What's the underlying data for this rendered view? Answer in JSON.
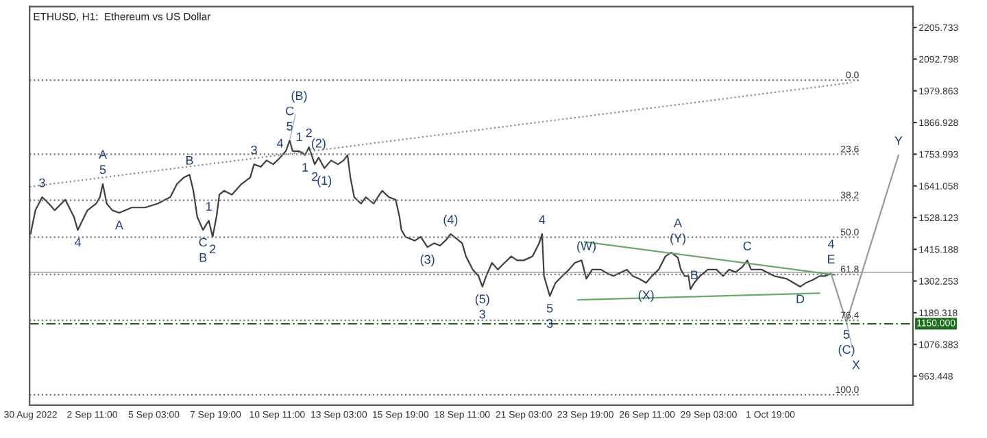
{
  "chart_data": {
    "type": "line",
    "title": "ETHUSD, H1:  Ethereum vs US Dollar",
    "xlim": [
      "2022-08-30T18:00",
      "2022-10-07T23:00"
    ],
    "ylim": [
      860,
      2280
    ],
    "xticks": [
      {
        "value": "2022-08-30T19:00",
        "label": "30 Aug 2022"
      },
      {
        "value": "2022-09-02T11:00",
        "label": "2 Sep 11:00"
      },
      {
        "value": "2022-09-05T03:00",
        "label": "5 Sep 03:00"
      },
      {
        "value": "2022-09-07T19:00",
        "label": "7 Sep 19:00"
      },
      {
        "value": "2022-09-10T11:00",
        "label": "10 Sep 11:00"
      },
      {
        "value": "2022-09-13T03:00",
        "label": "13 Sep 03:00"
      },
      {
        "value": "2022-09-15T19:00",
        "label": "15 Sep 19:00"
      },
      {
        "value": "2022-09-18T11:00",
        "label": "18 Sep 11:00"
      },
      {
        "value": "2022-09-21T03:00",
        "label": "21 Sep 03:00"
      },
      {
        "value": "2022-09-23T19:00",
        "label": "23 Sep 19:00"
      },
      {
        "value": "2022-09-26T11:00",
        "label": "26 Sep 11:00"
      },
      {
        "value": "2022-09-29T03:00",
        "label": "29 Sep 03:00"
      },
      {
        "value": "2022-10-01T19:00",
        "label": "1 Oct 19:00"
      }
    ],
    "yticks": [
      963.448,
      1076.383,
      1189.318,
      1302.253,
      1415.188,
      1528.123,
      1641.058,
      1753.993,
      1866.928,
      1979.863,
      2092.798,
      2205.733
    ],
    "grid": false,
    "legend": false,
    "series": [
      {
        "color": "#404040",
        "line_style": "solid",
        "marker": "none",
        "x": [
          "2022-08-30T19:00",
          "2022-08-31T00:00",
          "2022-08-31T07:00",
          "2022-08-31T14:00",
          "2022-08-31T20:00",
          "2022-09-01T07:00",
          "2022-09-01T16:00",
          "2022-09-01T20:00",
          "2022-09-02T06:00",
          "2022-09-02T15:00",
          "2022-09-02T19:00",
          "2022-09-02T22:00",
          "2022-09-03T02:00",
          "2022-09-03T08:00",
          "2022-09-03T15:00",
          "2022-09-04T04:00",
          "2022-09-04T18:00",
          "2022-09-05T07:00",
          "2022-09-05T20:00",
          "2022-09-06T03:00",
          "2022-09-06T10:00",
          "2022-09-06T16:00",
          "2022-09-06T20:00",
          "2022-09-07T00:00",
          "2022-09-07T06:00",
          "2022-09-07T10:00",
          "2022-09-07T12:00",
          "2022-09-07T16:00",
          "2022-09-07T20:00",
          "2022-09-07T23:00",
          "2022-09-08T04:00",
          "2022-09-08T12:00",
          "2022-09-08T22:00",
          "2022-09-09T07:00",
          "2022-09-09T11:00",
          "2022-09-09T18:00",
          "2022-09-10T00:00",
          "2022-09-10T07:00",
          "2022-09-10T14:00",
          "2022-09-10T20:00",
          "2022-09-11T00:00",
          "2022-09-11T03:00",
          "2022-09-11T10:00",
          "2022-09-11T16:00",
          "2022-09-11T20:00",
          "2022-09-12T02:00",
          "2022-09-12T06:00",
          "2022-09-12T12:00",
          "2022-09-12T19:00",
          "2022-09-13T02:00",
          "2022-09-13T08:00",
          "2022-09-13T12:00",
          "2022-09-13T15:00",
          "2022-09-13T19:00",
          "2022-09-14T02:00",
          "2022-09-14T07:00",
          "2022-09-14T15:00",
          "2022-09-15T00:00",
          "2022-09-15T07:00",
          "2022-09-15T14:00",
          "2022-09-15T18:00",
          "2022-09-15T20:00",
          "2022-09-16T00:00",
          "2022-09-16T10:00",
          "2022-09-16T16:00",
          "2022-09-16T23:00",
          "2022-09-17T06:00",
          "2022-09-17T12:00",
          "2022-09-17T19:00",
          "2022-09-17T23:00",
          "2022-09-18T06:00",
          "2022-09-18T11:00",
          "2022-09-18T15:00",
          "2022-09-18T22:00",
          "2022-09-19T04:00",
          "2022-09-19T08:00",
          "2022-09-19T12:00",
          "2022-09-19T18:00",
          "2022-09-20T00:00",
          "2022-09-20T07:00",
          "2022-09-20T14:00",
          "2022-09-20T20:00",
          "2022-09-21T03:00",
          "2022-09-21T12:00",
          "2022-09-21T19:00",
          "2022-09-21T22:00",
          "2022-09-22T00:00",
          "2022-09-22T06:00",
          "2022-09-22T12:00",
          "2022-09-22T19:00",
          "2022-09-23T02:00",
          "2022-09-23T08:00",
          "2022-09-23T15:00",
          "2022-09-23T20:00",
          "2022-09-24T02:00",
          "2022-09-24T11:00",
          "2022-09-24T18:00",
          "2022-09-25T00:00",
          "2022-09-25T14:00",
          "2022-09-25T20:00",
          "2022-09-26T03:00",
          "2022-09-26T10:00",
          "2022-09-26T16:00",
          "2022-09-26T23:00",
          "2022-09-27T06:00",
          "2022-09-27T12:00",
          "2022-09-27T19:00",
          "2022-09-27T22:00",
          "2022-09-28T02:00",
          "2022-09-28T06:00",
          "2022-09-28T08:00",
          "2022-09-28T12:00",
          "2022-09-28T18:00",
          "2022-09-29T02:00",
          "2022-09-29T11:00",
          "2022-09-29T18:00",
          "2022-09-30T00:00",
          "2022-09-30T07:00",
          "2022-09-30T14:00",
          "2022-09-30T19:00",
          "2022-09-30T23:00",
          "2022-10-01T10:00",
          "2022-10-01T23:00",
          "2022-10-02T12:00",
          "2022-10-02T19:00",
          "2022-10-03T02:00",
          "2022-10-03T08:00",
          "2022-10-03T15:00",
          "2022-10-03T22:00",
          "2022-10-04T04:00",
          "2022-10-04T10:00"
        ],
        "values": [
          1470,
          1554,
          1601,
          1578,
          1554,
          1592,
          1531,
          1484,
          1554,
          1578,
          1601,
          1648,
          1578,
          1554,
          1545,
          1564,
          1564,
          1578,
          1601,
          1648,
          1671,
          1681,
          1624,
          1531,
          1484,
          1507,
          1517,
          1460,
          1531,
          1610,
          1624,
          1610,
          1648,
          1671,
          1718,
          1709,
          1732,
          1718,
          1742,
          1765,
          1803,
          1765,
          1765,
          1751,
          1779,
          1718,
          1742,
          1704,
          1732,
          1718,
          1732,
          1751,
          1671,
          1601,
          1578,
          1601,
          1578,
          1624,
          1601,
          1592,
          1531,
          1484,
          1460,
          1446,
          1460,
          1423,
          1437,
          1428,
          1451,
          1470,
          1451,
          1437,
          1390,
          1343,
          1320,
          1282,
          1320,
          1367,
          1343,
          1367,
          1390,
          1376,
          1376,
          1390,
          1437,
          1470,
          1320,
          1249,
          1296,
          1320,
          1343,
          1367,
          1376,
          1310,
          1343,
          1343,
          1329,
          1320,
          1343,
          1320,
          1310,
          1296,
          1320,
          1343,
          1390,
          1404,
          1385,
          1343,
          1320,
          1320,
          1273,
          1296,
          1320,
          1343,
          1343,
          1320,
          1343,
          1334,
          1353,
          1376,
          1343,
          1343,
          1320,
          1310,
          1296,
          1282,
          1296,
          1306,
          1320,
          1320,
          1329
        ]
      },
      {
        "color": "#9a9a9a",
        "line_style": "solid",
        "marker": "none",
        "x": [
          "2022-10-04T10:00",
          "2022-10-05T02:00",
          "2022-10-07T08:00"
        ],
        "values": [
          1329,
          1156,
          1751
        ]
      },
      {
        "color": "#8c8c8c",
        "line_style": "dotted",
        "marker": "none",
        "x": [
          "2022-08-30T18:00",
          "2022-10-05T07:00"
        ],
        "values": [
          1638,
          2009
        ]
      },
      {
        "color": "#6aaa6a",
        "line_style": "solid",
        "marker": "none",
        "x": [
          "2022-09-23T18:00",
          "2022-10-04T14:00"
        ],
        "values": [
          1442,
          1324
        ]
      },
      {
        "color": "#6aaa6a",
        "line_style": "solid",
        "marker": "none",
        "x": [
          "2022-09-23T11:00",
          "2022-10-03T22:00"
        ],
        "values": [
          1235,
          1259
        ]
      },
      {
        "name": "0.0",
        "color": "#777777",
        "line_style": "dotted",
        "marker": "none",
        "x": [
          "2022-08-30T18:00",
          "2022-10-05T15:00"
        ],
        "values": [
          2018,
          2018
        ]
      },
      {
        "name": "23.6",
        "color": "#777777",
        "line_style": "dotted",
        "marker": "none",
        "x": [
          "2022-08-30T18:00",
          "2022-10-05T15:00"
        ],
        "values": [
          1754,
          1754
        ]
      },
      {
        "name": "38.2",
        "color": "#777777",
        "line_style": "dotted",
        "marker": "none",
        "x": [
          "2022-08-30T18:00",
          "2022-10-05T15:00"
        ],
        "values": [
          1590,
          1590
        ]
      },
      {
        "name": "50.0",
        "color": "#777777",
        "line_style": "dotted",
        "marker": "none",
        "x": [
          "2022-08-30T18:00",
          "2022-10-05T15:00"
        ],
        "values": [
          1458,
          1458
        ]
      },
      {
        "name": "61.8",
        "color": "#777777",
        "line_style": "dotted",
        "marker": "none",
        "x": [
          "2022-08-30T18:00",
          "2022-10-05T15:00"
        ],
        "values": [
          1326,
          1326
        ]
      },
      {
        "name": "76.4",
        "color": "#777777",
        "line_style": "dotted",
        "marker": "none",
        "x": [
          "2022-08-30T18:00",
          "2022-10-05T15:00"
        ],
        "values": [
          1162,
          1162
        ]
      },
      {
        "name": "100.0",
        "color": "#777777",
        "line_style": "dotted",
        "marker": "none",
        "x": [
          "2022-08-30T18:00",
          "2022-10-05T15:00"
        ],
        "values": [
          897,
          897
        ]
      }
    ],
    "annotations": [
      {
        "text": "3",
        "x": "2022-08-31T07:00",
        "y": 1601
      },
      {
        "text": "4",
        "x": "2022-09-01T20:00",
        "y": 1484
      },
      {
        "text": "5",
        "x": "2022-09-02T22:00",
        "y": 1648
      },
      {
        "text": "A",
        "x": "2022-09-02T22:00",
        "y": 1648
      },
      {
        "text": "A",
        "x": "2022-09-03T15:00",
        "y": 1545
      },
      {
        "text": "B",
        "x": "2022-09-06T16:00",
        "y": 1681
      },
      {
        "text": "C",
        "x": "2022-09-07T06:00",
        "y": 1484
      },
      {
        "text": "B",
        "x": "2022-09-07T06:00",
        "y": 1484
      },
      {
        "text": "1",
        "x": "2022-09-07T12:00",
        "y": 1517
      },
      {
        "text": "2",
        "x": "2022-09-07T16:00",
        "y": 1460
      },
      {
        "text": "3",
        "x": "2022-09-09T11:00",
        "y": 1718
      },
      {
        "text": "4",
        "x": "2022-09-10T14:00",
        "y": 1742
      },
      {
        "text": "5",
        "x": "2022-09-11T00:00",
        "y": 1803
      },
      {
        "text": "C",
        "x": "2022-09-11T00:00",
        "y": 1803
      },
      {
        "text": "(B)",
        "x": "2022-09-11T00:00",
        "y": 1803
      },
      {
        "text": "1",
        "x": "2022-09-11T10:00",
        "y": 1765
      },
      {
        "text": "2",
        "x": "2022-09-11T20:00",
        "y": 1779
      },
      {
        "text": "2",
        "x": "2022-09-12T02:00",
        "y": 1718
      },
      {
        "text": "(2)",
        "x": "2022-09-12T06:00",
        "y": 1742
      },
      {
        "text": "1",
        "x": "2022-09-11T16:00",
        "y": 1751
      },
      {
        "text": "(1)",
        "x": "2022-09-12T12:00",
        "y": 1704
      },
      {
        "text": "(3)",
        "x": "2022-09-16T23:00",
        "y": 1423
      },
      {
        "text": "(4)",
        "x": "2022-09-17T23:00",
        "y": 1470
      },
      {
        "text": "(5)",
        "x": "2022-09-19T08:00",
        "y": 1282
      },
      {
        "text": "3",
        "x": "2022-09-19T08:00",
        "y": 1282
      },
      {
        "text": "4",
        "x": "2022-09-21T22:00",
        "y": 1470
      },
      {
        "text": "5",
        "x": "2022-09-22T06:00",
        "y": 1249
      },
      {
        "text": "3",
        "x": "2022-09-22T06:00",
        "y": 1249
      },
      {
        "text": "(W)",
        "x": "2022-09-23T20:00",
        "y": 1376
      },
      {
        "text": "(X)",
        "x": "2022-09-26T10:00",
        "y": 1296
      },
      {
        "text": "(Y)",
        "x": "2022-09-27T19:00",
        "y": 1404
      },
      {
        "text": "A",
        "x": "2022-09-27T19:00",
        "y": 1404
      },
      {
        "text": "B",
        "x": "2022-09-28T12:00",
        "y": 1273
      },
      {
        "text": "C",
        "x": "2022-09-30T19:00",
        "y": 1376
      },
      {
        "text": "D",
        "x": "2022-10-03T02:00",
        "y": 1282
      },
      {
        "text": "E",
        "x": "2022-10-04T10:00",
        "y": 1329
      },
      {
        "text": "4",
        "x": "2022-10-04T10:00",
        "y": 1329
      },
      {
        "text": "5",
        "x": "2022-10-05T02:00",
        "y": 1156
      },
      {
        "text": "(C)",
        "x": "2022-10-05T02:00",
        "y": 1156
      },
      {
        "text": "X",
        "x": "2022-10-05T02:00",
        "y": 1156
      },
      {
        "text": "Y",
        "x": "2022-10-07T08:00",
        "y": 1751
      }
    ],
    "ref_lines": [
      {
        "axis": "y",
        "value": 1150,
        "label": "1150.000",
        "color": "#1e6e1e",
        "line_style": "dashed"
      },
      {
        "axis": "y",
        "value": 1333,
        "color": "#bbbbbb",
        "line_style": "solid"
      }
    ]
  }
}
